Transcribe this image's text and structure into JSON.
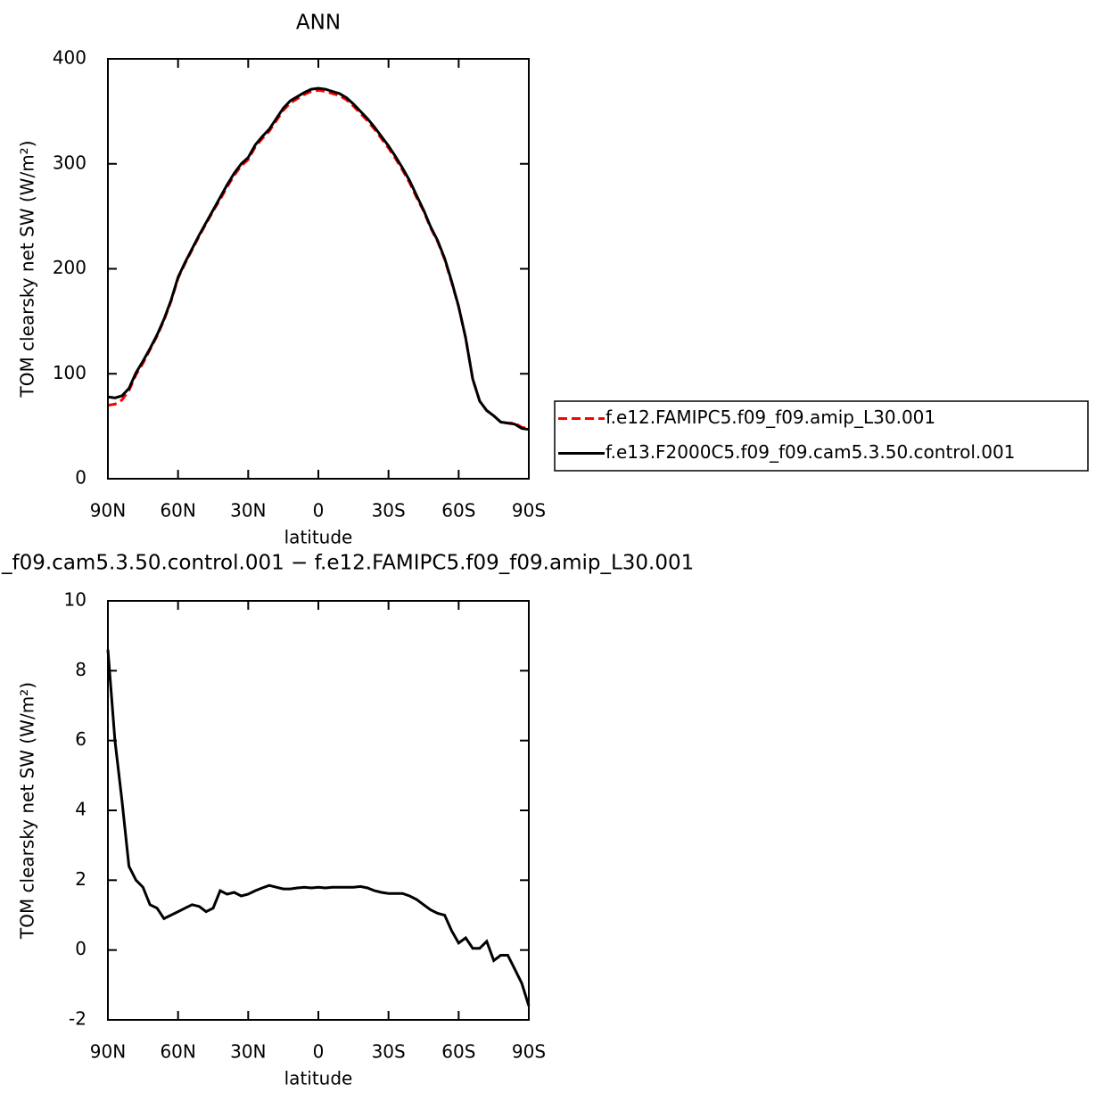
{
  "chart_data": [
    {
      "type": "line",
      "title": "ANN",
      "x_label": "latitude",
      "y_label": "TOM clearsky net SW (W/m²)",
      "x": [
        90,
        87,
        84,
        81,
        78,
        75,
        72,
        69,
        66,
        63,
        60,
        57,
        54,
        51,
        48,
        45,
        42,
        39,
        36,
        33,
        30,
        27,
        24,
        21,
        18,
        15,
        12,
        9,
        6,
        3,
        0,
        -3,
        -6,
        -9,
        -12,
        -15,
        -18,
        -21,
        -24,
        -27,
        -30,
        -33,
        -36,
        -39,
        -42,
        -45,
        -48,
        -51,
        -54,
        -57,
        -60,
        -63,
        -66,
        -69,
        -72,
        -75,
        -78,
        -81,
        -84,
        -87,
        -90
      ],
      "series": [
        {
          "name": "f.e12.FAMIPC5.f09_f09.amip_L30.001",
          "color": "#ff0000",
          "line_style": "dashed",
          "values": [
            70,
            71,
            75,
            84,
            99,
            110,
            123,
            136,
            151,
            169,
            191,
            205,
            218,
            231,
            243,
            255,
            266,
            278,
            289,
            298,
            304,
            316,
            324,
            331,
            341,
            351,
            358,
            362,
            366,
            369,
            370,
            369,
            367,
            365,
            361,
            355,
            348,
            341,
            333,
            324,
            315,
            305,
            294,
            282,
            268,
            255,
            239,
            226,
            209,
            187,
            164,
            134,
            95,
            74,
            65,
            60,
            54,
            53,
            53,
            49,
            48
          ]
        },
        {
          "name": "f.e13.F2000C5.f09_f09.cam5.3.50.control.001",
          "color": "#000000",
          "line_style": "solid",
          "values": [
            78,
            77,
            79,
            86,
            101,
            112,
            124,
            137,
            152,
            170,
            192,
            206,
            219,
            232,
            244,
            256,
            268,
            280,
            291,
            300,
            306,
            318,
            326,
            333,
            343,
            353,
            360,
            364,
            368,
            371,
            372,
            371,
            369,
            367,
            363,
            357,
            350,
            343,
            335,
            326,
            317,
            307,
            296,
            284,
            270,
            256,
            240,
            227,
            210,
            188,
            164,
            134,
            95,
            74,
            65,
            60,
            54,
            53,
            52,
            48,
            47
          ]
        }
      ],
      "xlim": [
        90,
        -90
      ],
      "xticks": [
        {
          "value": 90,
          "label": "90N"
        },
        {
          "value": 60,
          "label": "60N"
        },
        {
          "value": 30,
          "label": "30N"
        },
        0,
        {
          "value": -30,
          "label": "30S"
        },
        {
          "value": -60,
          "label": "60S"
        },
        {
          "value": -90,
          "label": "90S"
        }
      ],
      "ylim": [
        0,
        400
      ],
      "yticks": [
        0,
        100,
        200,
        300,
        400
      ],
      "legend": "right"
    },
    {
      "type": "line",
      "title": "_f09.cam5.3.50.control.001 − f.e12.FAMIPC5.f09_f09.amip_L30.001",
      "x_label": "latitude",
      "y_label": "TOM clearsky net SW (W/m²)",
      "x": [
        90,
        87,
        84,
        81,
        78,
        75,
        72,
        69,
        66,
        63,
        60,
        57,
        54,
        51,
        48,
        45,
        42,
        39,
        36,
        33,
        30,
        27,
        24,
        21,
        18,
        15,
        12,
        9,
        6,
        3,
        0,
        -3,
        -6,
        -9,
        -12,
        -15,
        -18,
        -21,
        -24,
        -27,
        -30,
        -33,
        -36,
        -39,
        -42,
        -45,
        -48,
        -51,
        -54,
        -57,
        -60,
        -63,
        -66,
        -69,
        -72,
        -75,
        -78,
        -81,
        -84,
        -87,
        -90
      ],
      "series": [
        {
          "color": "#000000",
          "line_style": "solid",
          "values": [
            8.6,
            6.0,
            4.3,
            2.4,
            2.0,
            1.8,
            1.3,
            1.2,
            0.9,
            1.0,
            1.1,
            1.2,
            1.3,
            1.25,
            1.1,
            1.2,
            1.7,
            1.6,
            1.65,
            1.55,
            1.6,
            1.7,
            1.78,
            1.85,
            1.8,
            1.75,
            1.75,
            1.78,
            1.8,
            1.78,
            1.8,
            1.78,
            1.8,
            1.8,
            1.8,
            1.8,
            1.82,
            1.78,
            1.7,
            1.65,
            1.62,
            1.62,
            1.62,
            1.55,
            1.45,
            1.3,
            1.15,
            1.05,
            1.0,
            0.55,
            0.2,
            0.35,
            0.05,
            0.05,
            0.25,
            -0.3,
            -0.15,
            -0.15,
            -0.55,
            -0.95,
            -1.6
          ]
        }
      ],
      "xlim": [
        90,
        -90
      ],
      "xticks": [
        {
          "value": 90,
          "label": "90N"
        },
        {
          "value": 60,
          "label": "60N"
        },
        {
          "value": 30,
          "label": "30N"
        },
        0,
        {
          "value": -30,
          "label": "30S"
        },
        {
          "value": -60,
          "label": "60S"
        },
        {
          "value": -90,
          "label": "90S"
        }
      ],
      "ylim": [
        -2,
        10
      ],
      "yticks": [
        -2,
        0,
        2,
        4,
        6,
        8,
        10
      ]
    }
  ]
}
